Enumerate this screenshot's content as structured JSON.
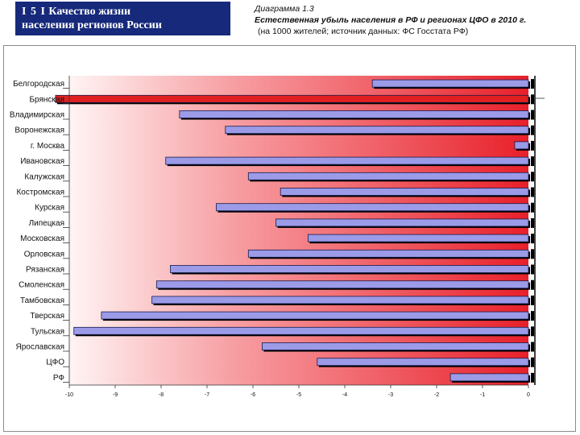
{
  "header": {
    "section_number": "I 5 I",
    "section_title_line1": "Качество жизни",
    "section_title_line2": "населения регионов России"
  },
  "caption": {
    "diagram_label": "Диаграмма 1.3",
    "title": "Естественная убыль населения в РФ и регионах ЦФО в 2010 г.",
    "subtitle": "(на 1000 жителей; источник данных: ФС Госстата РФ)"
  },
  "colors": {
    "bar_fill": "#9b9be8",
    "bar_highlight": "#e02020",
    "plot_bg_left": "#fff4f4",
    "plot_bg_right": "#e8202a"
  },
  "chart_data": {
    "type": "bar",
    "orientation": "horizontal",
    "title": "Естественная убыль населения в РФ и регионах ЦФО в 2010 г.",
    "xlabel": "",
    "ylabel": "",
    "xlim": [
      -10,
      0
    ],
    "x_ticks": [
      "-10",
      "-9",
      "-8",
      "-7",
      "-6",
      "-5",
      "-4",
      "-3",
      "-2",
      "-1",
      "0"
    ],
    "highlight_index": 1,
    "categories": [
      "Белгородская",
      "Брянская",
      "Владимирская",
      "Воронежская",
      "г. Москва",
      "Ивановская",
      "Калужская",
      "Костромская",
      "Курская",
      "Липецкая",
      "Московская",
      "Орловская",
      "Рязанская",
      "Смоленская",
      "Тамбовская",
      "Тверская",
      "Тульская",
      "Ярославская",
      "ЦФО",
      "РФ"
    ],
    "values": [
      -3.4,
      -10.3,
      -7.6,
      -6.6,
      -0.3,
      -7.9,
      -6.1,
      -5.4,
      -6.8,
      -5.5,
      -4.8,
      -6.1,
      -7.8,
      -8.1,
      -8.2,
      -9.3,
      -9.9,
      -5.8,
      -4.6,
      -1.7
    ]
  }
}
